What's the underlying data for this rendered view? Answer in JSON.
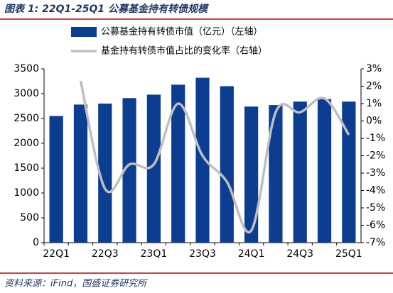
{
  "chart_data": {
    "type": "bar",
    "title": "图表 1:  22Q1-25Q1 公募基金持有转债规模",
    "source": "资料来源：iFind，国盛证券研究所",
    "categories": [
      "22Q1",
      null,
      "22Q3",
      null,
      "23Q1",
      null,
      "23Q3",
      null,
      "24Q1",
      null,
      "24Q3",
      null,
      "25Q1"
    ],
    "series": [
      {
        "name": "公募基金持有转债市值（亿元）（左轴）",
        "type": "bar",
        "color": "#0b3d91",
        "values": [
          2550,
          2780,
          2800,
          2910,
          2980,
          3180,
          3320,
          3150,
          2740,
          2770,
          2840,
          2890,
          2840
        ]
      },
      {
        "name": "基金持有转债市值占比的变化率（右轴）",
        "type": "line",
        "axis": "y2",
        "color": "#bfbfbf",
        "values": [
          null,
          2.3,
          -3.9,
          -2.5,
          -2.5,
          1.0,
          -2.0,
          -3.5,
          -6.3,
          0.5,
          0.5,
          1.3,
          -0.8
        ]
      }
    ],
    "ylim": [
      0,
      3500
    ],
    "yticks": [
      0,
      500,
      1000,
      1500,
      2000,
      2500,
      3000,
      3500
    ],
    "y2lim": [
      -7,
      3
    ],
    "y2ticks": [
      {
        "value": -7,
        "label": "-7%"
      },
      {
        "value": -6,
        "label": "-6%"
      },
      {
        "value": -5,
        "label": "-5%"
      },
      {
        "value": -4,
        "label": "-4%"
      },
      {
        "value": -3,
        "label": "-3%"
      },
      {
        "value": -2,
        "label": "-2%"
      },
      {
        "value": -1,
        "label": "-1%"
      },
      {
        "value": 0,
        "label": "0%"
      },
      {
        "value": 1,
        "label": "1%"
      },
      {
        "value": 2,
        "label": "2%"
      },
      {
        "value": 3,
        "label": "3%"
      }
    ]
  }
}
